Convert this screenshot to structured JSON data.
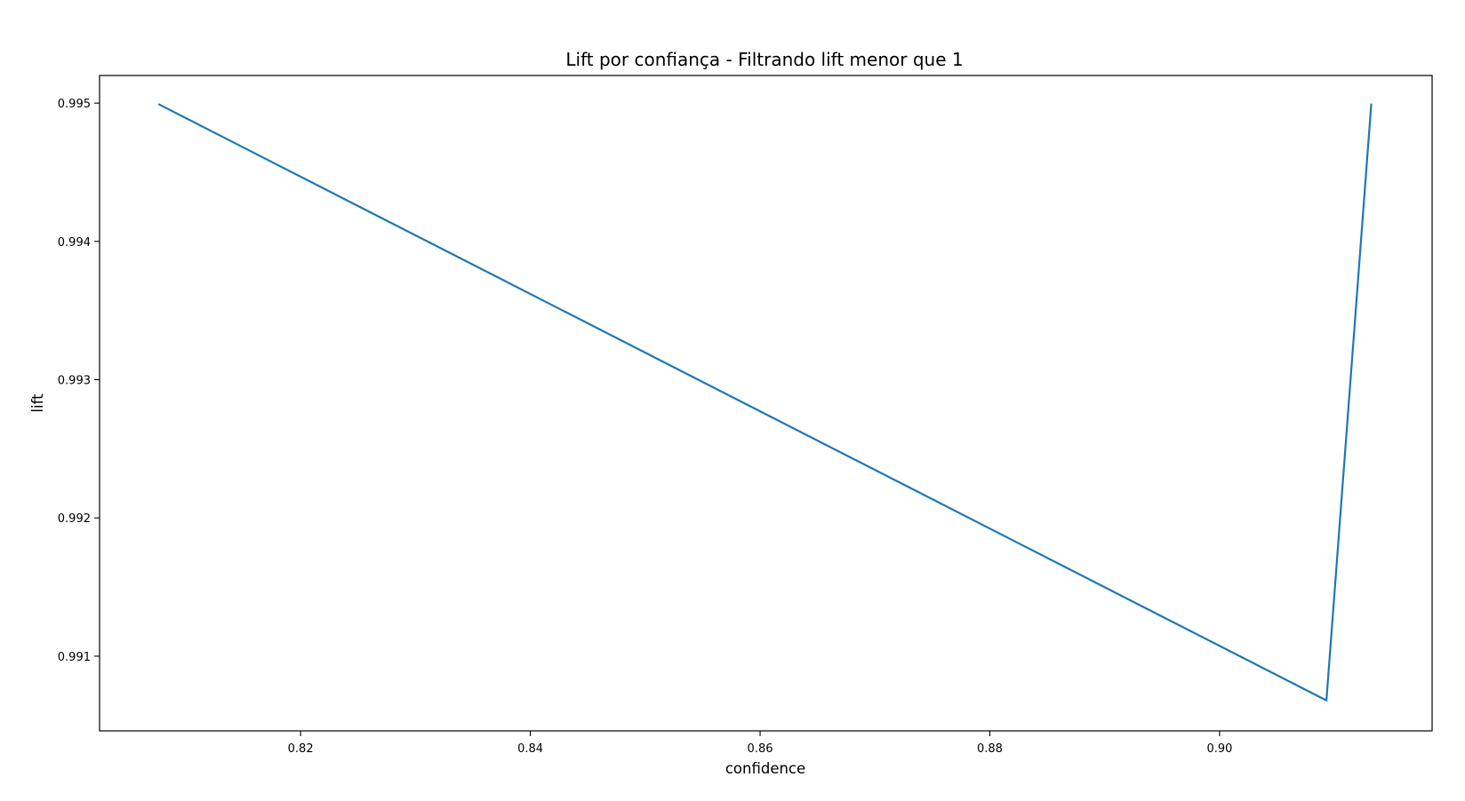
{
  "chart_data": {
    "type": "line",
    "title": "Lift por confiança - Filtrando lift menor que 1",
    "xlabel": "confidence",
    "ylabel": "lift",
    "xlim": [
      0.8025,
      0.9185
    ],
    "ylim": [
      0.99046,
      0.9952
    ],
    "grid": false,
    "x_ticks": [
      0.82,
      0.84,
      0.86,
      0.88,
      0.9
    ],
    "x_tick_labels": [
      "0.82",
      "0.84",
      "0.86",
      "0.88",
      "0.90"
    ],
    "y_ticks": [
      0.991,
      0.992,
      0.993,
      0.994,
      0.995
    ],
    "y_tick_labels": [
      "0.991",
      "0.992",
      "0.993",
      "0.994",
      "0.995"
    ],
    "series": [
      {
        "color": "#1f77b4",
        "x": [
          0.8077,
          0.9093,
          0.9132
        ],
        "y": [
          0.99499,
          0.99068,
          0.99499
        ]
      }
    ]
  }
}
